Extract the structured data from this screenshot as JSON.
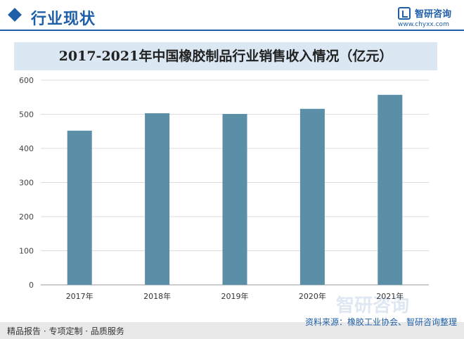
{
  "header": {
    "section_title": "行业现状",
    "logo_name": "智研咨询",
    "logo_url": "www.chyxx.com"
  },
  "watermark": "智研咨询",
  "colors": {
    "accent": "#1f5ea8",
    "bar": "#5b8fa8",
    "title_band": "#dbe8f3"
  },
  "chart_data": {
    "type": "bar",
    "title": "2017-2021年中国橡胶制品行业销售收入情况（亿元）",
    "categories": [
      "2017年",
      "2018年",
      "2019年",
      "2020年",
      "2021年"
    ],
    "values": [
      452,
      503,
      501,
      516,
      557
    ],
    "ylim": [
      0,
      600
    ],
    "yticks": [
      0,
      100,
      200,
      300,
      400,
      500,
      600
    ],
    "grid": true,
    "xlabel": "",
    "ylabel": ""
  },
  "footer": {
    "left": "精品报告 · 专项定制 · 品质服务",
    "source": "资料来源：橡胶工业协会、智研咨询整理"
  }
}
